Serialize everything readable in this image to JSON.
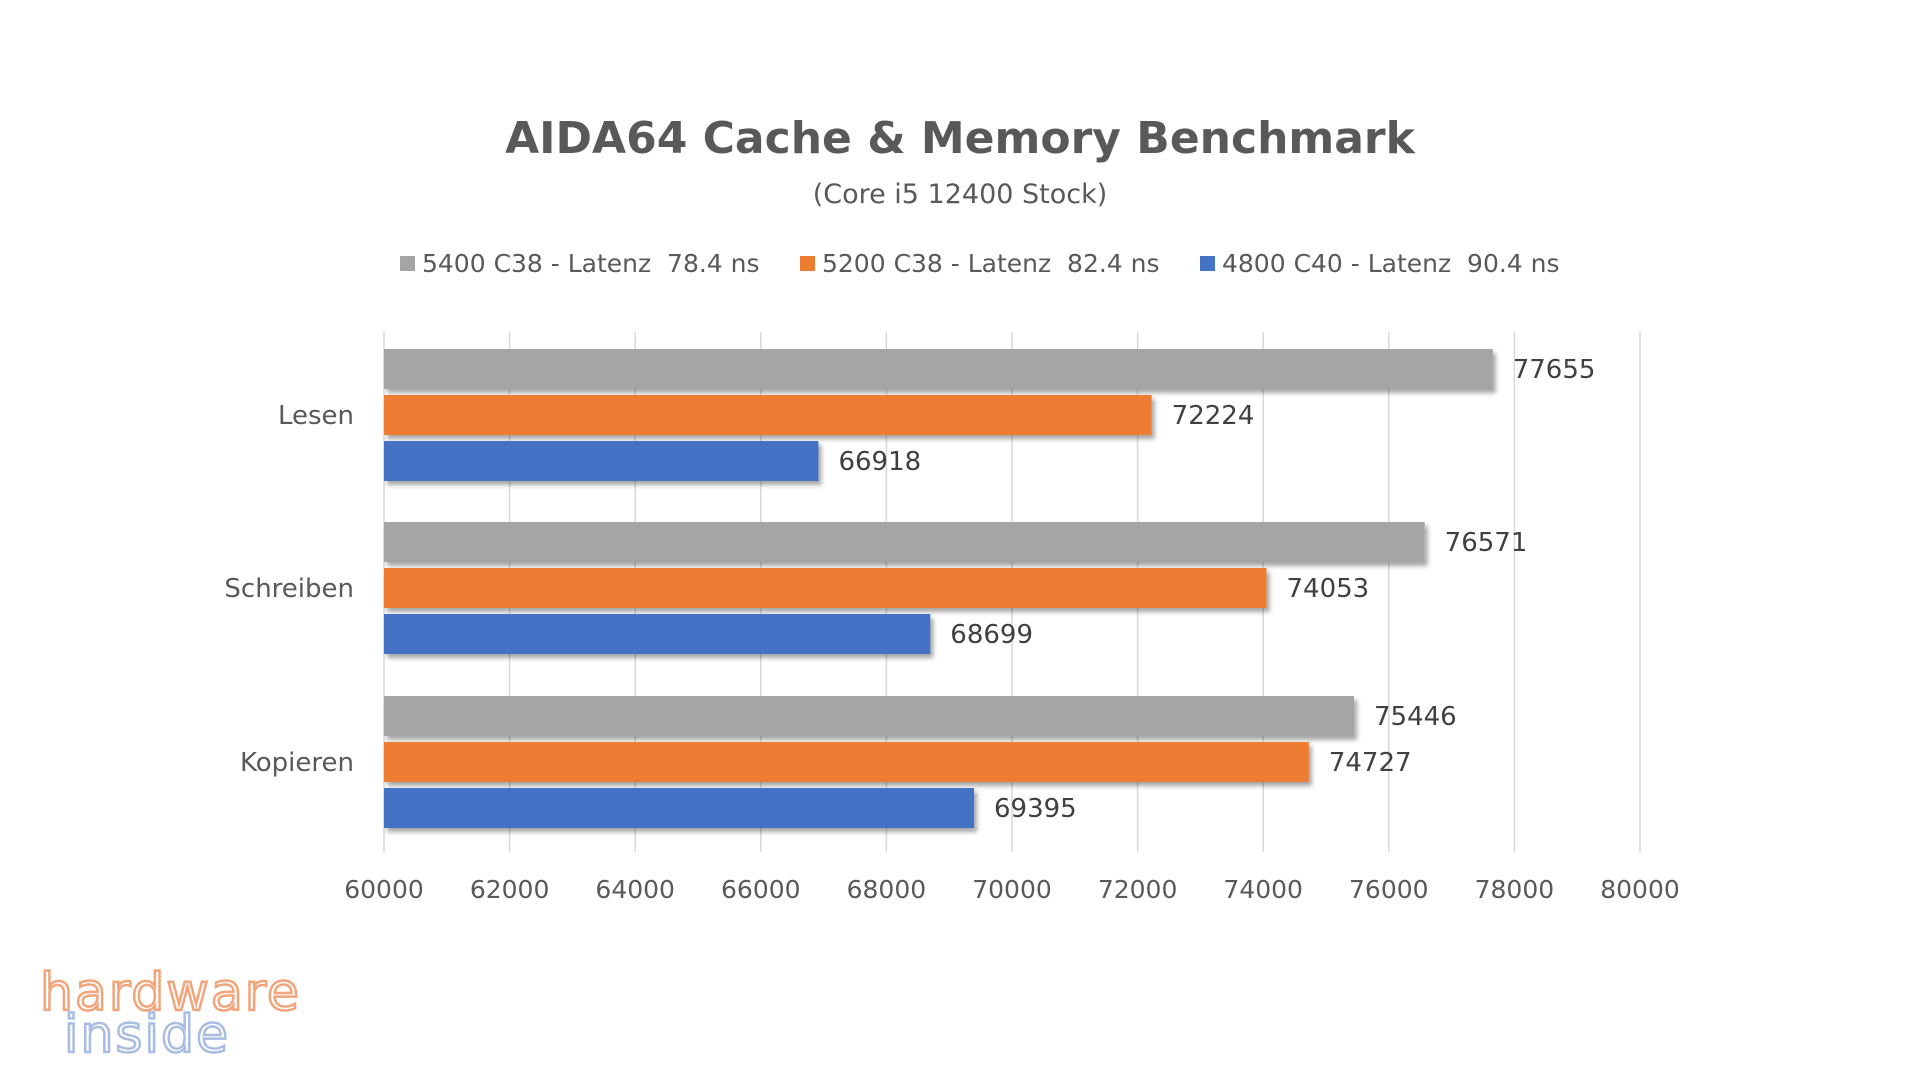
{
  "chart_data": {
    "type": "bar",
    "orientation": "horizontal",
    "title": "AIDA64 Cache & Memory Benchmark",
    "subtitle": "(Core i5 12400 Stock)",
    "categories": [
      "Lesen",
      "Schreiben",
      "Kopieren"
    ],
    "series": [
      {
        "name": "5400 C38 - Latenz  78.4 ns",
        "color": "#a5a5a5",
        "values": [
          77655,
          76571,
          75446
        ]
      },
      {
        "name": "5200 C38 - Latenz  82.4 ns",
        "color": "#ed7d31",
        "values": [
          72224,
          74053,
          74727
        ]
      },
      {
        "name": "4800 C40 - Latenz  90.4 ns",
        "color": "#4472c4",
        "values": [
          66918,
          68699,
          69395
        ]
      }
    ],
    "xlim": [
      60000,
      80000
    ],
    "xticks": [
      60000,
      62000,
      64000,
      66000,
      68000,
      70000,
      72000,
      74000,
      76000,
      78000,
      80000
    ],
    "grid": true,
    "legend_position": "top",
    "data_labels": true
  },
  "watermark": {
    "line1": "hardware",
    "line2": "inside",
    "colors": [
      "#f2a57a",
      "#a9bde3"
    ]
  }
}
